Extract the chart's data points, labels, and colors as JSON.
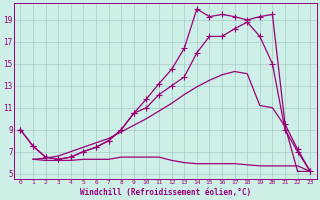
{
  "background_color": "#ceeee8",
  "grid_color": "#a8ccc8",
  "line_color": "#990077",
  "xlabel": "Windchill (Refroidissement éolien,°C)",
  "yticks": [
    5,
    7,
    9,
    11,
    13,
    15,
    17,
    19
  ],
  "xticks": [
    0,
    1,
    2,
    3,
    4,
    5,
    6,
    7,
    8,
    9,
    10,
    11,
    12,
    13,
    14,
    15,
    16,
    17,
    18,
    19,
    20,
    21,
    22,
    23
  ],
  "xlim": [
    -0.5,
    23.5
  ],
  "ylim": [
    4.5,
    20.5
  ],
  "curve1_x": [
    0,
    1,
    2,
    3,
    4,
    5,
    6,
    7,
    8,
    9,
    10,
    11,
    12,
    13,
    14,
    15,
    16,
    17,
    18,
    19,
    20,
    21,
    22,
    23
  ],
  "curve1_y": [
    9.0,
    7.5,
    6.5,
    6.3,
    6.5,
    7.0,
    7.4,
    8.0,
    9.0,
    10.5,
    11.8,
    13.2,
    14.5,
    16.4,
    20.0,
    19.3,
    19.5,
    19.3,
    19.0,
    19.3,
    19.5,
    9.5,
    7.2,
    5.2
  ],
  "curve2_x": [
    0,
    1,
    2,
    3,
    4,
    5,
    6,
    7,
    8,
    9,
    10,
    11,
    12,
    13,
    14,
    15,
    16,
    17,
    18,
    19,
    20,
    21,
    22,
    23
  ],
  "curve2_y": [
    9.0,
    7.5,
    6.5,
    6.3,
    6.5,
    7.0,
    7.4,
    8.0,
    9.0,
    10.5,
    11.0,
    12.2,
    13.0,
    13.8,
    16.0,
    17.5,
    17.5,
    18.2,
    18.8,
    17.5,
    15.0,
    9.0,
    7.0,
    5.2
  ],
  "curve3_x": [
    1,
    2,
    3,
    4,
    5,
    6,
    7,
    8,
    9,
    10,
    11,
    12,
    13,
    14,
    15,
    16,
    17,
    18,
    19,
    20,
    21,
    22,
    23
  ],
  "curve3_y": [
    6.3,
    6.2,
    6.2,
    6.2,
    6.3,
    6.3,
    6.3,
    6.5,
    6.5,
    6.5,
    6.5,
    6.2,
    6.0,
    5.9,
    5.9,
    5.9,
    5.9,
    5.8,
    5.7,
    5.7,
    5.7,
    5.7,
    5.2
  ],
  "curve4_x": [
    1,
    2,
    3,
    4,
    5,
    6,
    7,
    8,
    9,
    10,
    11,
    12,
    13,
    14,
    15,
    16,
    17,
    18,
    19,
    20,
    21,
    22,
    23
  ],
  "curve4_y": [
    6.3,
    6.4,
    6.6,
    7.0,
    7.4,
    7.8,
    8.2,
    8.8,
    9.4,
    10.0,
    10.7,
    11.4,
    12.2,
    12.9,
    13.5,
    14.0,
    14.3,
    14.1,
    11.2,
    11.0,
    9.3,
    5.2,
    5.2
  ]
}
